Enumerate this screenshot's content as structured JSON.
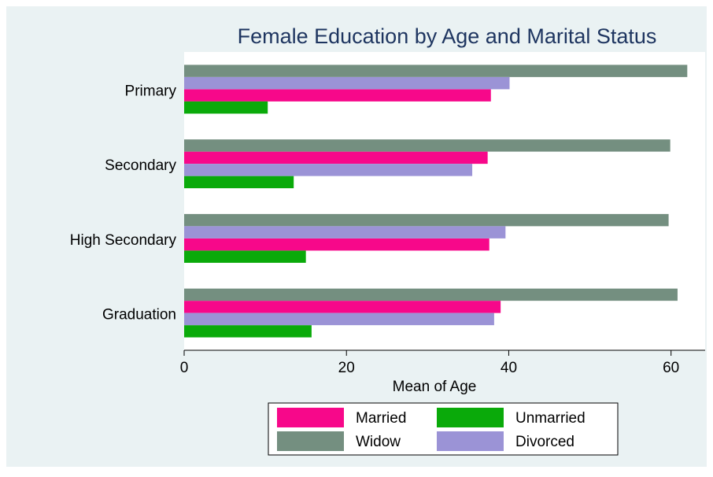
{
  "chart_data": {
    "type": "bar",
    "orientation": "horizontal",
    "title": "Female Education by Age and Marital Status",
    "x_label": "Mean of Age",
    "categories": [
      "Primary",
      "Secondary",
      "High Secondary",
      "Graduation"
    ],
    "series": [
      {
        "name": "Married",
        "color": "#f7088a",
        "values": [
          37.8,
          37.4,
          37.6,
          39.0
        ]
      },
      {
        "name": "Unmarried",
        "color": "#0aaa0a",
        "values": [
          10.3,
          13.5,
          15.0,
          15.7
        ]
      },
      {
        "name": "Widow",
        "color": "#748f80",
        "values": [
          62.0,
          59.9,
          59.7,
          60.8
        ]
      },
      {
        "name": "Divorced",
        "color": "#9b93d6",
        "values": [
          40.1,
          35.5,
          39.6,
          38.2
        ]
      }
    ],
    "xlim": [
      0,
      64.2
    ],
    "xticks": [
      0,
      20,
      40,
      60
    ],
    "legend": "bottom",
    "grid": false
  }
}
